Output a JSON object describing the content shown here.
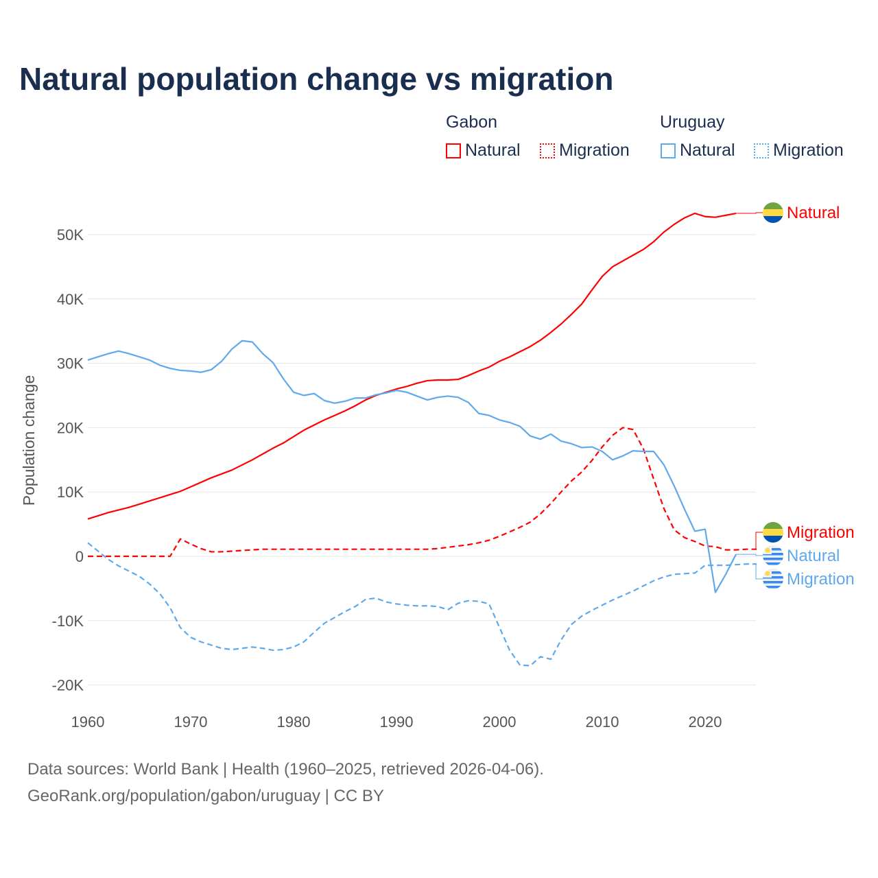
{
  "title": "Natural population change vs migration",
  "legend": {
    "groups": [
      {
        "name": "Gabon",
        "items": [
          "Natural",
          "Migration"
        ]
      },
      {
        "name": "Uruguay",
        "items": [
          "Natural",
          "Migration"
        ]
      }
    ]
  },
  "footer": {
    "line1": "Data sources: World Bank | Health (1960–2025, retrieved 2026-04-06).",
    "line2": "GeoRank.org/population/gabon/uruguay | CC BY"
  },
  "chart_data": {
    "type": "line",
    "title": "Natural population change vs migration",
    "xlabel": "",
    "ylabel": "Population change",
    "xlim": [
      1960,
      2025
    ],
    "ylim": [
      -20000,
      55000
    ],
    "x_ticks": [
      "1960",
      "1970",
      "1980",
      "1990",
      "2000",
      "2010",
      "2020"
    ],
    "y_ticks": [
      {
        "v": -20000,
        "label": "-20K"
      },
      {
        "v": -10000,
        "label": "-10K"
      },
      {
        "v": 0,
        "label": "0"
      },
      {
        "v": 10000,
        "label": "10K"
      },
      {
        "v": 20000,
        "label": "20K"
      },
      {
        "v": 30000,
        "label": "30K"
      },
      {
        "v": 40000,
        "label": "40K"
      },
      {
        "v": 50000,
        "label": "50K"
      }
    ],
    "grid": true,
    "legend_placement": "top-right",
    "series": [
      {
        "name": "Gabon Natural",
        "label": "Natural",
        "color": "#ff0000",
        "dash": false,
        "start": 1960,
        "values": [
          5.8,
          6.3,
          6.8,
          7.2,
          7.6,
          8.1,
          8.6,
          9.1,
          9.6,
          10.1,
          10.8,
          11.5,
          12.2,
          12.8,
          13.4,
          14.2,
          15.0,
          15.9,
          16.8,
          17.6,
          18.6,
          19.6,
          20.4,
          21.2,
          21.9,
          22.6,
          23.4,
          24.3,
          25.0,
          25.5,
          26.0,
          26.4,
          26.9,
          27.3,
          27.4,
          27.4,
          27.5,
          28.1,
          28.8,
          29.4,
          30.3,
          31.0,
          31.8,
          32.6,
          33.6,
          34.8,
          36.1,
          37.6,
          39.2,
          41.4,
          43.5,
          45.0,
          45.9,
          46.8,
          47.7,
          48.9,
          50.4,
          51.6,
          52.6,
          53.3,
          52.8,
          52.7,
          53.0,
          53.3
        ]
      },
      {
        "name": "Gabon Migration",
        "label": "Migration",
        "color": "#ff0000",
        "dash": true,
        "start": 1960,
        "values": [
          0,
          0,
          0,
          0,
          0,
          0,
          0,
          0,
          0,
          2.7,
          1.9,
          1.2,
          0.7,
          0.7,
          0.8,
          0.9,
          1.0,
          1.1,
          1.1,
          1.1,
          1.1,
          1.1,
          1.1,
          1.1,
          1.1,
          1.1,
          1.1,
          1.1,
          1.1,
          1.1,
          1.1,
          1.1,
          1.1,
          1.1,
          1.2,
          1.4,
          1.6,
          1.8,
          2.1,
          2.5,
          3.1,
          3.8,
          4.5,
          5.3,
          6.6,
          8.2,
          10.0,
          11.7,
          13.1,
          14.9,
          17.0,
          18.8,
          20.0,
          19.7,
          16.7,
          12.0,
          7.4,
          4.1,
          2.9,
          2.3,
          1.6,
          1.5,
          1.0,
          1.0,
          1.1,
          1.1
        ]
      },
      {
        "name": "Uruguay Natural",
        "label": "Natural",
        "color": "#5ea8ec",
        "dash": false,
        "start": 1960,
        "values": [
          30.5,
          31.0,
          31.5,
          31.9,
          31.5,
          31.0,
          30.5,
          29.7,
          29.2,
          28.9,
          28.8,
          28.6,
          29.0,
          30.3,
          32.2,
          33.5,
          33.3,
          31.5,
          30.1,
          27.6,
          25.5,
          25.0,
          25.3,
          24.2,
          23.8,
          24.1,
          24.6,
          24.6,
          25.1,
          25.4,
          25.8,
          25.5,
          24.9,
          24.3,
          24.7,
          24.9,
          24.7,
          23.9,
          22.2,
          21.9,
          21.2,
          20.8,
          20.2,
          18.7,
          18.2,
          19.0,
          17.9,
          17.5,
          16.9,
          17.0,
          16.3,
          15.0,
          15.6,
          16.4,
          16.3,
          16.3,
          14.2,
          10.9,
          7.3,
          3.9,
          4.2,
          -5.6,
          -2.8,
          0.3
        ]
      },
      {
        "name": "Uruguay Migration",
        "label": "Migration",
        "color": "#5ea8ec",
        "dash": true,
        "start": 1960,
        "values": [
          2.1,
          0.8,
          -0.5,
          -1.5,
          -2.3,
          -3.1,
          -4.3,
          -5.8,
          -8.0,
          -11.1,
          -12.6,
          -13.3,
          -13.8,
          -14.3,
          -14.5,
          -14.3,
          -14.1,
          -14.3,
          -14.6,
          -14.5,
          -14.1,
          -13.3,
          -11.8,
          -10.4,
          -9.5,
          -8.6,
          -7.8,
          -6.7,
          -6.5,
          -7.1,
          -7.4,
          -7.6,
          -7.7,
          -7.7,
          -7.8,
          -8.3,
          -7.3,
          -6.9,
          -7.0,
          -7.4,
          -11.0,
          -14.6,
          -16.9,
          -17.0,
          -15.6,
          -16.0,
          -13.0,
          -10.6,
          -9.3,
          -8.4,
          -7.6,
          -6.8,
          -6.1,
          -5.4,
          -4.6,
          -3.8,
          -3.2,
          -2.8,
          -2.7,
          -2.6,
          -1.4,
          -1.4,
          -1.4,
          -1.3,
          -1.2,
          -1.2
        ]
      }
    ],
    "value_unit": "thousands",
    "colors": {
      "gabon": "#ff0000",
      "uruguay": "#5ea8ec"
    }
  }
}
